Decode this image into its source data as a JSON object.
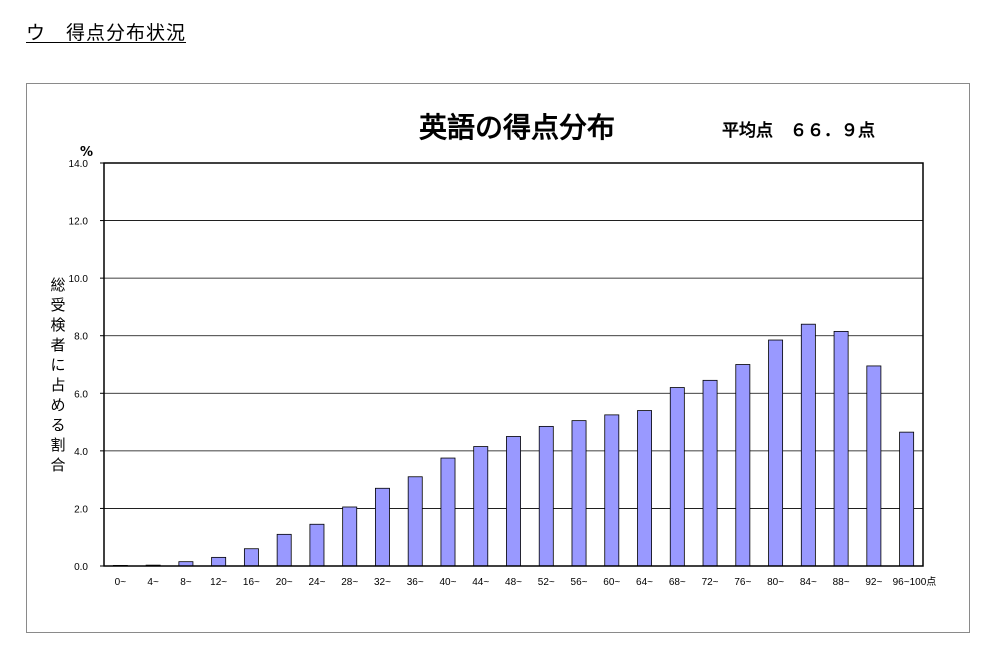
{
  "section_heading": "ウ　得点分布状況",
  "chart_data": {
    "type": "bar",
    "title": "英語の得点分布",
    "average_label": "平均点　６６．９点",
    "y_unit": "%",
    "ylabel": "総受検者に占める割合",
    "ylim": [
      0,
      14
    ],
    "yticks": [
      "0.0",
      "2.0",
      "4.0",
      "6.0",
      "8.0",
      "10.0",
      "12.0",
      "14.0"
    ],
    "grid": true,
    "categories": [
      "0~",
      "4~",
      "8~",
      "12~",
      "16~",
      "20~",
      "24~",
      "28~",
      "32~",
      "36~",
      "40~",
      "44~",
      "48~",
      "52~",
      "56~",
      "60~",
      "64~",
      "68~",
      "72~",
      "76~",
      "80~",
      "84~",
      "88~",
      "92~",
      "96~100点"
    ],
    "values": [
      0.02,
      0.03,
      0.15,
      0.3,
      0.6,
      1.1,
      1.45,
      2.05,
      2.7,
      3.1,
      3.75,
      4.15,
      4.5,
      4.85,
      5.05,
      5.25,
      5.4,
      6.2,
      6.45,
      7.0,
      7.85,
      8.4,
      8.15,
      6.95,
      4.65
    ],
    "bar_color": "#9999ff",
    "bar_stroke": "#000000"
  }
}
